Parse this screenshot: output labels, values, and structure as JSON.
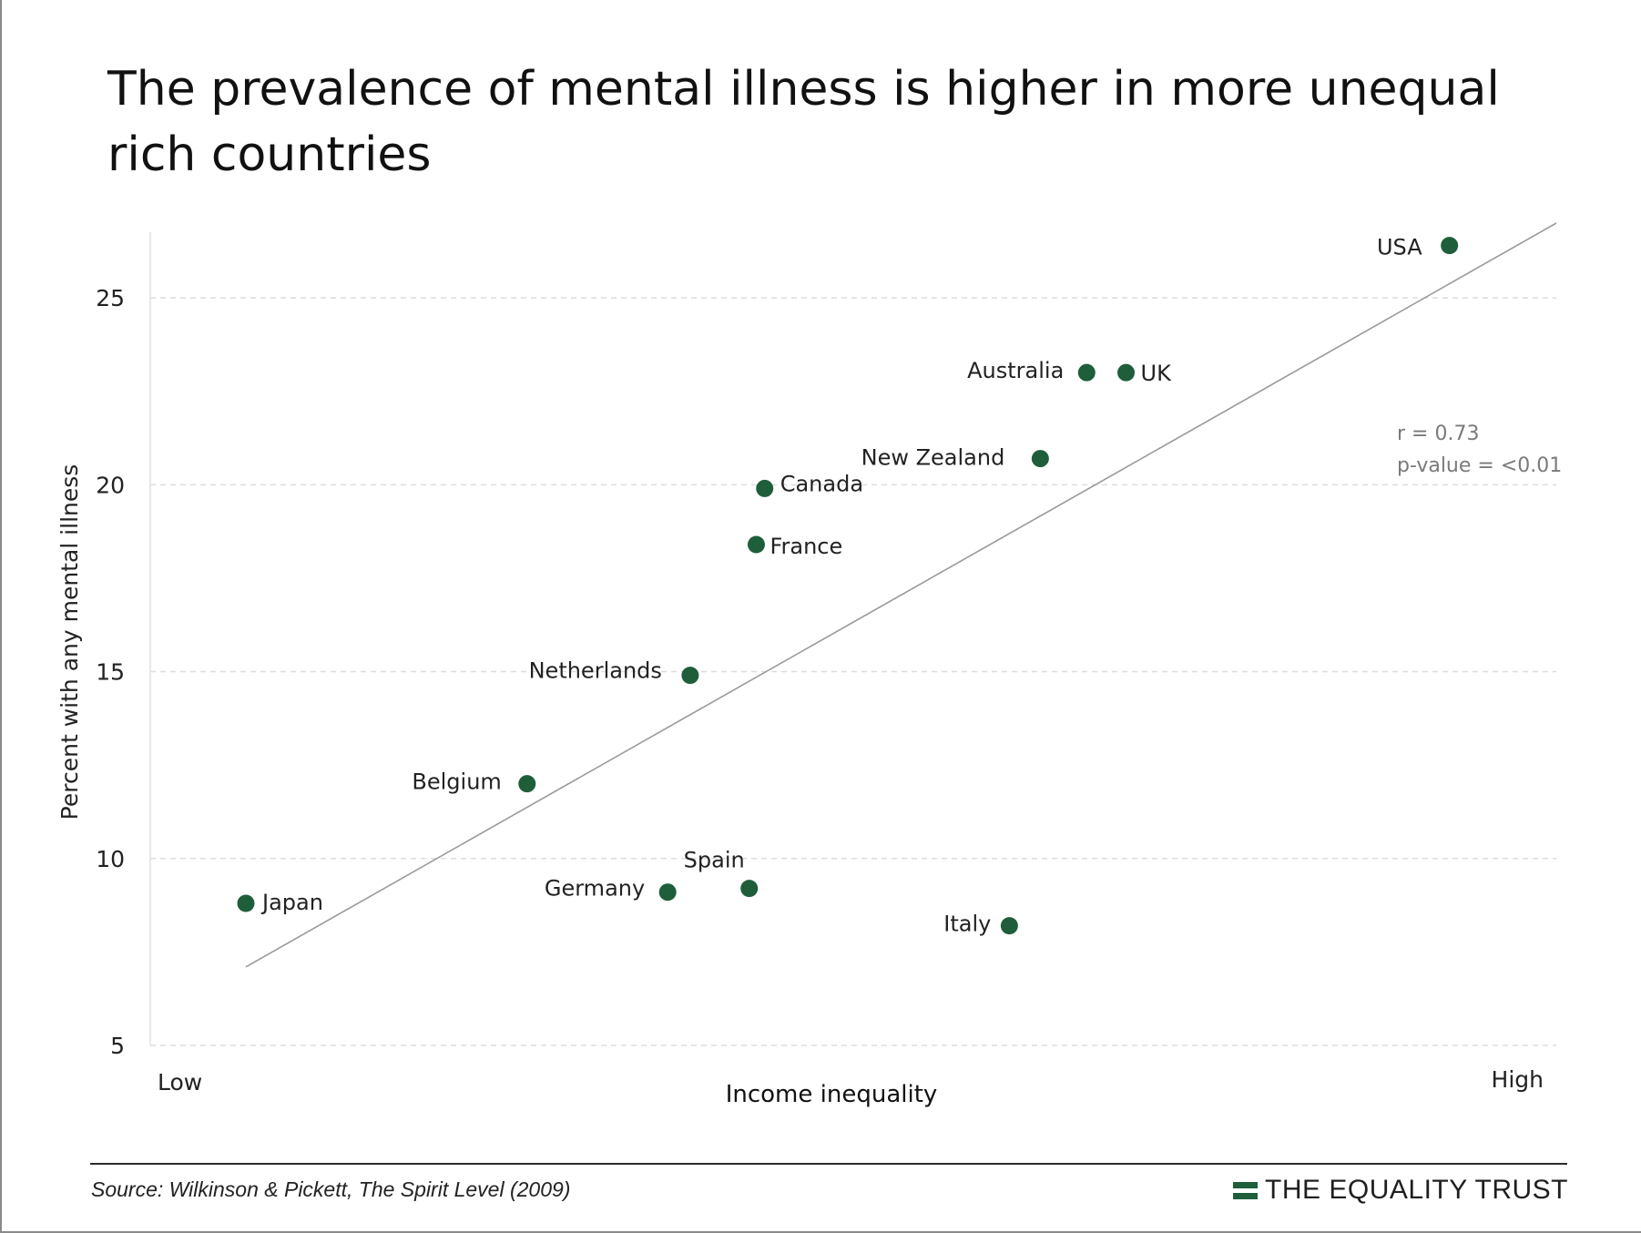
{
  "title": "The prevalence of mental illness is higher in more unequal rich countries",
  "colors": {
    "point": "#1e5e3a",
    "trend": "#9a9a9a",
    "grid": "#dddddd",
    "brand": "#1e5e3a"
  },
  "chart_data": {
    "type": "scatter",
    "xlabel": "Income inequality",
    "ylabel": "Percent with any mental illness",
    "x_tick_labels": {
      "low": "Low",
      "high": "High"
    },
    "xlim": [
      0,
      100
    ],
    "ylim": [
      5,
      27
    ],
    "yticks": [
      5,
      10,
      15,
      20,
      25
    ],
    "grid": "horizontal dashed",
    "points": [
      {
        "label": "Japan",
        "x": 6.8,
        "y": 8.8
      },
      {
        "label": "Belgium",
        "x": 26.8,
        "y": 12.0
      },
      {
        "label": "Germany",
        "x": 36.8,
        "y": 9.1
      },
      {
        "label": "Netherlands",
        "x": 38.4,
        "y": 14.9
      },
      {
        "label": "Spain",
        "x": 42.6,
        "y": 9.2
      },
      {
        "label": "France",
        "x": 43.1,
        "y": 18.4
      },
      {
        "label": "Canada",
        "x": 43.7,
        "y": 19.9
      },
      {
        "label": "Italy",
        "x": 61.1,
        "y": 8.2
      },
      {
        "label": "New Zealand",
        "x": 63.3,
        "y": 20.7
      },
      {
        "label": "Australia",
        "x": 66.6,
        "y": 23.0
      },
      {
        "label": "UK",
        "x": 69.4,
        "y": 23.0
      },
      {
        "label": "USA",
        "x": 92.4,
        "y": 26.4
      }
    ],
    "trendline": {
      "x": [
        6.8,
        100
      ],
      "y": [
        7.1,
        27.0
      ]
    },
    "annotation": {
      "r_text": "r = 0.73",
      "p_text": "p-value = <0.01"
    }
  },
  "footer": {
    "source": "Source: Wilkinson & Pickett, The Spirit Level (2009)",
    "brand": "THE EQUALITY TRUST"
  }
}
